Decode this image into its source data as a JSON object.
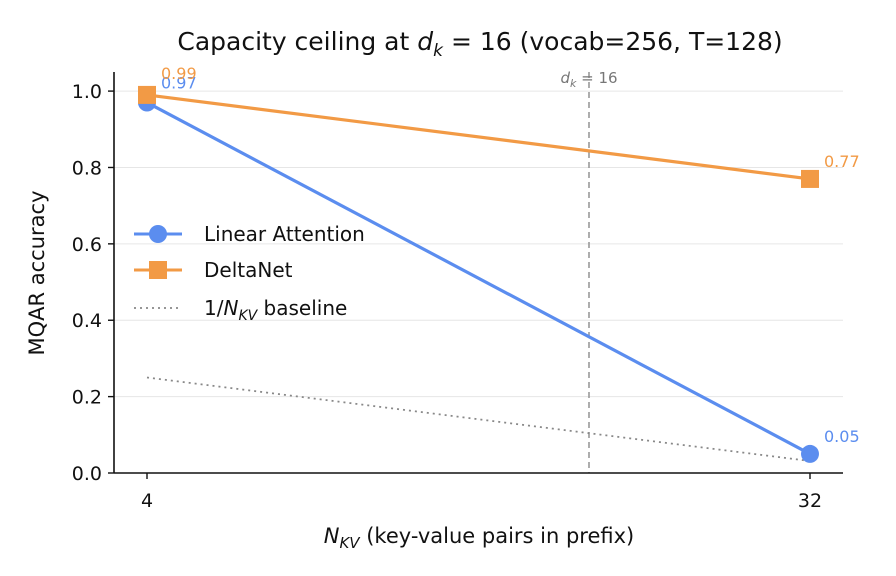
{
  "chart_data": {
    "type": "line",
    "title": "Capacity ceiling at d_k = 16 (vocab=256, T=128)",
    "title_parts": {
      "prefix": "Capacity ceiling at ",
      "var": "d",
      "var_sub": "k",
      "eq": " = 16",
      "suffix": " (vocab=256, T=128)"
    },
    "xlabel": "N_KV (key-value pairs in prefix)",
    "xlabel_parts": {
      "var": "N",
      "var_sub": "KV",
      "suffix": " (key-value pairs in prefix)"
    },
    "ylabel": "MQAR accuracy",
    "x": [
      4,
      32
    ],
    "x_tick_labels": [
      "4",
      "32"
    ],
    "y_ticks": [
      "0.0",
      "0.2",
      "0.4",
      "0.6",
      "0.8",
      "1.0"
    ],
    "ylim": [
      0,
      1.05
    ],
    "grid": "horizontal",
    "series": [
      {
        "name": "Linear Attention",
        "values": [
          0.97,
          0.05
        ],
        "labels": [
          "0.97",
          "0.05"
        ],
        "color": "#5b8def",
        "marker": "circle"
      },
      {
        "name": "DeltaNet",
        "values": [
          0.99,
          0.77
        ],
        "labels": [
          "0.99",
          "0.77"
        ],
        "color": "#f29a45",
        "marker": "square"
      }
    ],
    "baseline": {
      "name": "1/N_KV baseline",
      "name_parts": {
        "prefix": "1/",
        "var": "N",
        "var_sub": "KV",
        "suffix": " baseline"
      },
      "values": [
        0.25,
        0.03125
      ],
      "color": "#888888",
      "style": "dotted"
    },
    "vline": {
      "x": 16,
      "label_var": "d",
      "label_sub": "k",
      "label_eq": " = 16",
      "color": "#999999",
      "style": "dashed"
    },
    "legend_placement": "center-left"
  }
}
